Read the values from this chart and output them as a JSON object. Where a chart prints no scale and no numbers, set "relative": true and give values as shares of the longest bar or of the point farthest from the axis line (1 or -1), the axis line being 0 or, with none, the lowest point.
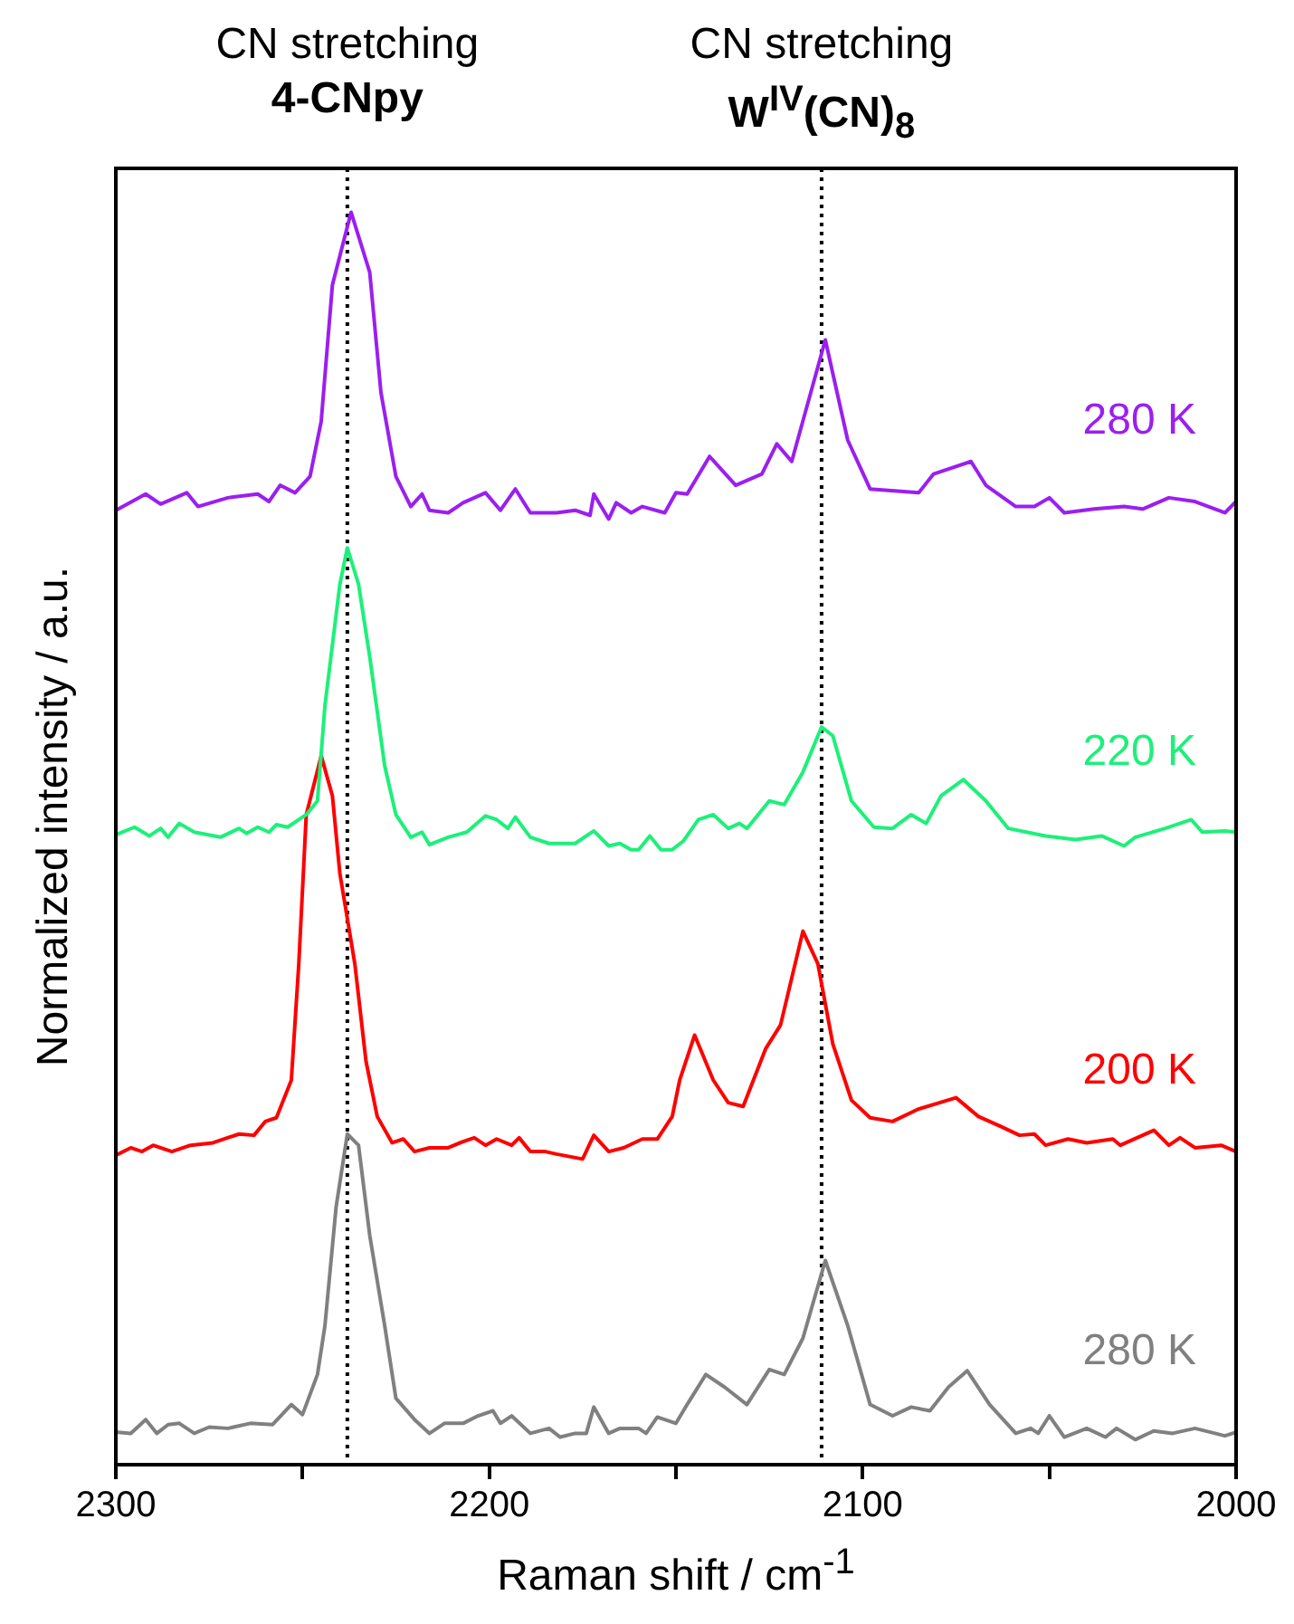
{
  "chart_data": {
    "type": "line",
    "relative": true,
    "xlabel": "Raman shift / cm$^{-1}$",
    "ylabel": "Normalized intensity / a.u.",
    "xlim": [
      2300,
      2000
    ],
    "xticks": [
      2300,
      {
        "value": 2250,
        "label": null
      },
      2200,
      {
        "value": 2150,
        "label": null
      },
      2100,
      {
        "value": 2050,
        "label": null
      },
      2000
    ],
    "ref_lines": [
      {
        "axis": "x",
        "value": 2238,
        "label": "CN stretching\n4-CNpy",
        "color": "#000000",
        "line_style": "dotted"
      },
      {
        "axis": "x",
        "value": 2111,
        "label": "CN stretching\nW$^{IV}$(CN)$_{8}$",
        "color": "#000000",
        "line_style": "dotted"
      }
    ],
    "series": [
      {
        "name": "280 K",
        "color": "#9b1ff0",
        "x": [
          2300,
          2292,
          2288,
          2281,
          2278,
          2270,
          2262,
          2259,
          2256,
          2252,
          2248,
          2245,
          2242,
          2237,
          2232,
          2229,
          2225,
          2221,
          2218,
          2216,
          2211,
          2207,
          2201,
          2197,
          2193,
          2189,
          2182,
          2177,
          2173,
          2172,
          2168,
          2166,
          2162,
          2159,
          2153,
          2150,
          2147,
          2141,
          2134,
          2127,
          2123,
          2119,
          2110,
          2104,
          2098,
          2085,
          2081,
          2071,
          2067,
          2059,
          2054,
          2050,
          2046,
          2038,
          2030,
          2025,
          2018,
          2011,
          2003,
          2000
        ],
        "values": [
          0.762,
          0.775,
          0.767,
          0.776,
          0.765,
          0.772,
          0.775,
          0.769,
          0.782,
          0.776,
          0.789,
          0.833,
          0.942,
          1,
          0.952,
          0.856,
          0.789,
          0.765,
          0.775,
          0.762,
          0.76,
          0.768,
          0.776,
          0.762,
          0.779,
          0.76,
          0.76,
          0.762,
          0.758,
          0.775,
          0.755,
          0.768,
          0.76,
          0.765,
          0.76,
          0.776,
          0.775,
          0.805,
          0.782,
          0.791,
          0.815,
          0.801,
          0.898,
          0.818,
          0.779,
          0.776,
          0.791,
          0.801,
          0.782,
          0.765,
          0.765,
          0.772,
          0.76,
          0.763,
          0.765,
          0.763,
          0.772,
          0.769,
          0.76,
          0.769
        ]
      },
      {
        "name": "220 K",
        "color": "#1df07a",
        "x": [
          2300,
          2295,
          2291,
          2288,
          2286,
          2283,
          2279,
          2272,
          2267,
          2265,
          2262,
          2259,
          2257,
          2254,
          2249,
          2246,
          2244,
          2240,
          2238,
          2235,
          2232,
          2228,
          2225,
          2221,
          2218,
          2216,
          2211,
          2206,
          2201,
          2198,
          2195,
          2193,
          2189,
          2184,
          2177,
          2172,
          2168,
          2165,
          2162,
          2160,
          2157,
          2154,
          2151,
          2148,
          2144,
          2140,
          2136,
          2133,
          2131,
          2125,
          2121,
          2116,
          2111,
          2108,
          2103,
          2097,
          2092,
          2087,
          2083,
          2079,
          2073,
          2067,
          2061,
          2051,
          2043,
          2036,
          2030,
          2027,
          2019,
          2012,
          2009,
          2003,
          2000
        ],
        "values": [
          0.503,
          0.509,
          0.502,
          0.508,
          0.501,
          0.512,
          0.505,
          0.501,
          0.508,
          0.504,
          0.509,
          0.505,
          0.511,
          0.509,
          0.519,
          0.53,
          0.606,
          0.703,
          0.732,
          0.703,
          0.645,
          0.558,
          0.519,
          0.501,
          0.505,
          0.495,
          0.501,
          0.505,
          0.518,
          0.515,
          0.508,
          0.517,
          0.501,
          0.496,
          0.496,
          0.506,
          0.494,
          0.496,
          0.491,
          0.491,
          0.502,
          0.491,
          0.491,
          0.498,
          0.515,
          0.519,
          0.508,
          0.512,
          0.508,
          0.53,
          0.527,
          0.553,
          0.589,
          0.582,
          0.53,
          0.509,
          0.508,
          0.519,
          0.512,
          0.534,
          0.547,
          0.53,
          0.508,
          0.502,
          0.499,
          0.502,
          0.494,
          0.501,
          0.508,
          0.515,
          0.505,
          0.506,
          0.505
        ]
      },
      {
        "name": "200 K",
        "color": "#ff0000",
        "x": [
          2300,
          2296,
          2293,
          2290,
          2285,
          2280,
          2274,
          2267,
          2263,
          2260,
          2257,
          2253,
          2251,
          2249,
          2245,
          2242,
          2240,
          2236,
          2233,
          2230,
          2226,
          2223,
          2220,
          2216,
          2211,
          2207,
          2204,
          2201,
          2198,
          2194,
          2192,
          2189,
          2185,
          2182,
          2175,
          2172,
          2168,
          2164,
          2159,
          2155,
          2151,
          2149,
          2145,
          2140,
          2136,
          2132,
          2126,
          2122,
          2116,
          2112,
          2108,
          2103,
          2098,
          2092,
          2085,
          2075,
          2069,
          2063,
          2058,
          2054,
          2051,
          2045,
          2040,
          2033,
          2031,
          2022,
          2018,
          2015,
          2011,
          2004,
          2000
        ],
        "values": [
          0.247,
          0.253,
          0.25,
          0.255,
          0.25,
          0.255,
          0.257,
          0.264,
          0.263,
          0.274,
          0.277,
          0.307,
          0.4,
          0.519,
          0.566,
          0.534,
          0.472,
          0.4,
          0.322,
          0.278,
          0.257,
          0.26,
          0.25,
          0.253,
          0.253,
          0.258,
          0.261,
          0.255,
          0.26,
          0.255,
          0.261,
          0.25,
          0.25,
          0.248,
          0.244,
          0.263,
          0.25,
          0.253,
          0.26,
          0.26,
          0.278,
          0.307,
          0.343,
          0.307,
          0.289,
          0.286,
          0.332,
          0.351,
          0.426,
          0.4,
          0.336,
          0.291,
          0.277,
          0.274,
          0.284,
          0.293,
          0.278,
          0.27,
          0.263,
          0.264,
          0.255,
          0.26,
          0.257,
          0.26,
          0.255,
          0.267,
          0.255,
          0.261,
          0.253,
          0.255,
          0.25
        ]
      },
      {
        "name": "280 K",
        "color": "#808080",
        "x": [
          2300,
          2296,
          2292,
          2289,
          2286,
          2283,
          2279,
          2275,
          2270,
          2264,
          2258,
          2253,
          2250,
          2246,
          2244,
          2241,
          2238,
          2235,
          2232,
          2228,
          2225,
          2220,
          2216,
          2212,
          2207,
          2203,
          2199,
          2197,
          2194,
          2189,
          2184,
          2181,
          2177,
          2174,
          2172,
          2168,
          2165,
          2160,
          2158,
          2155,
          2150,
          2147,
          2142,
          2137,
          2131,
          2125,
          2121,
          2116,
          2110,
          2104,
          2098,
          2092,
          2087,
          2082,
          2077,
          2072,
          2066,
          2059,
          2055,
          2053,
          2050,
          2046,
          2040,
          2035,
          2032,
          2027,
          2022,
          2017,
          2011,
          2003,
          2000
        ],
        "values": [
          0.026,
          0.025,
          0.036,
          0.025,
          0.032,
          0.033,
          0.025,
          0.03,
          0.029,
          0.033,
          0.032,
          0.048,
          0.04,
          0.072,
          0.111,
          0.206,
          0.264,
          0.255,
          0.183,
          0.111,
          0.053,
          0.036,
          0.025,
          0.033,
          0.033,
          0.039,
          0.043,
          0.033,
          0.039,
          0.025,
          0.029,
          0.022,
          0.025,
          0.025,
          0.046,
          0.025,
          0.029,
          0.029,
          0.025,
          0.038,
          0.033,
          0.048,
          0.072,
          0.062,
          0.048,
          0.076,
          0.072,
          0.101,
          0.163,
          0.111,
          0.048,
          0.039,
          0.046,
          0.043,
          0.062,
          0.075,
          0.048,
          0.025,
          0.029,
          0.025,
          0.039,
          0.022,
          0.029,
          0.022,
          0.029,
          0.02,
          0.027,
          0.025,
          0.029,
          0.023,
          0.026
        ]
      }
    ]
  }
}
